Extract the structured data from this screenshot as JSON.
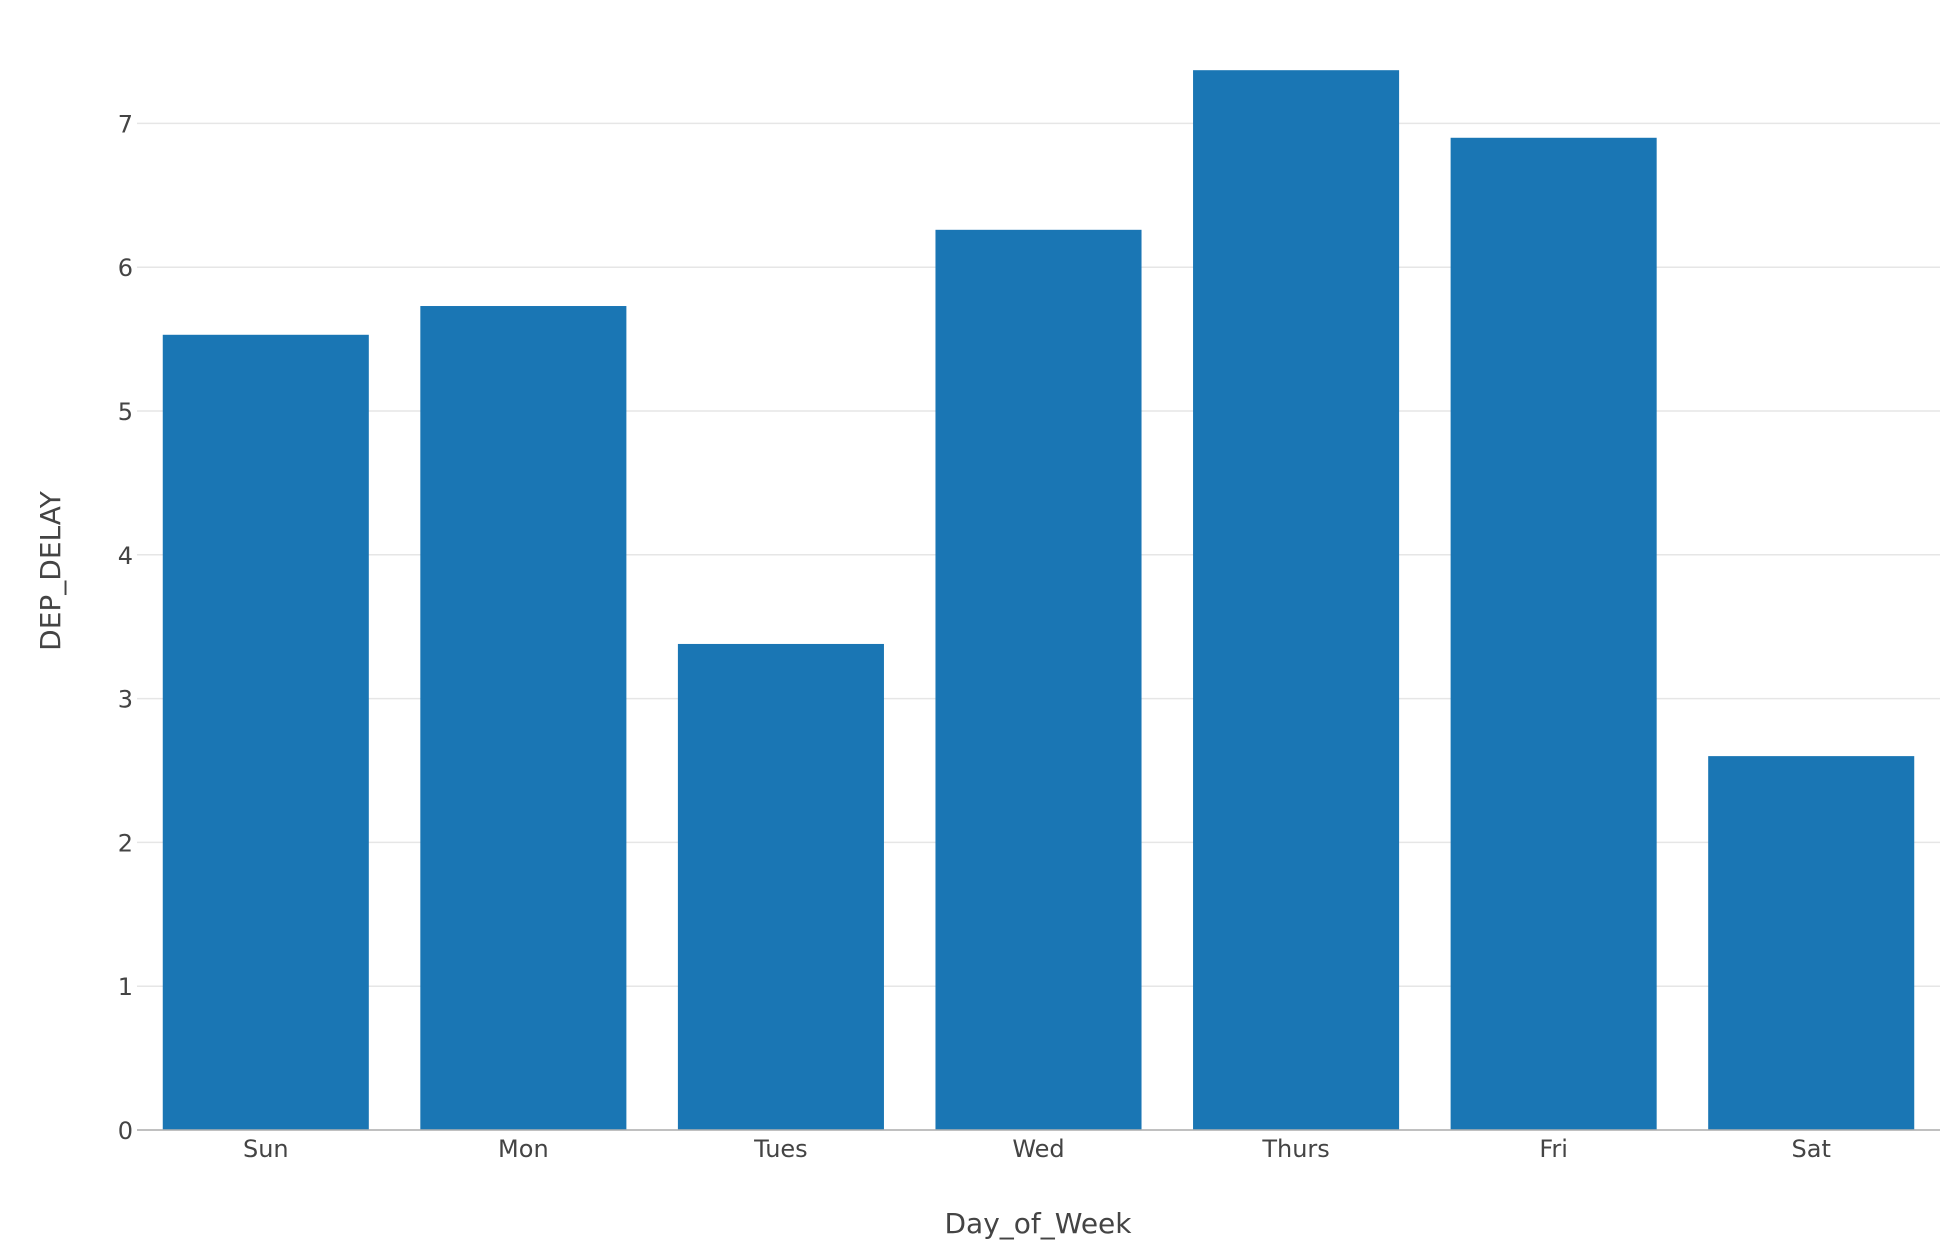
{
  "chart_data": {
    "type": "bar",
    "x_label": "Day_of_Week",
    "y_label": "DEP_DELAY",
    "categories": [
      "Sun",
      "Mon",
      "Tues",
      "Wed",
      "Thurs",
      "Fri",
      "Sat"
    ],
    "values": [
      5.53,
      5.73,
      3.38,
      6.26,
      7.37,
      6.9,
      2.6
    ],
    "color": "#1a76b4",
    "ylim": [
      0,
      7.42
    ],
    "yticks": [
      0,
      1,
      2,
      3,
      4,
      5,
      6,
      7
    ],
    "grid": true
  }
}
